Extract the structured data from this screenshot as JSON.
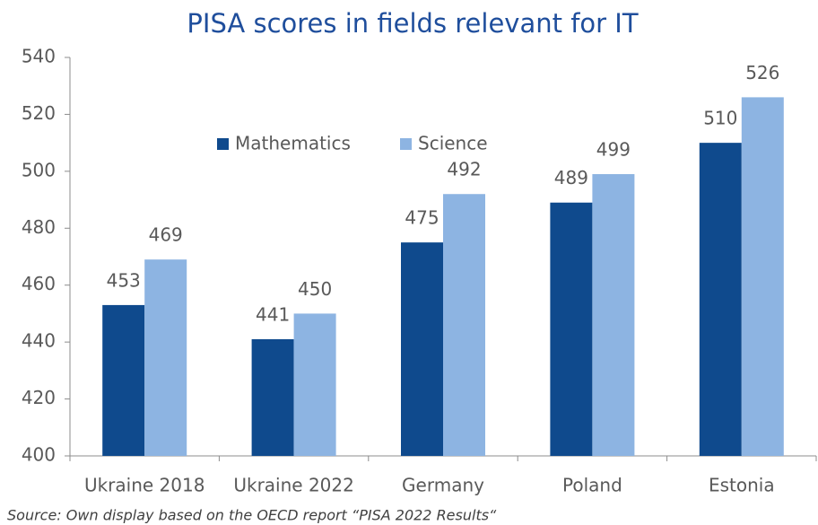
{
  "chart_data": {
    "type": "bar",
    "title": "PISA scores in fields relevant for IT",
    "categories": [
      "Ukraine 2018",
      "Ukraine 2022",
      "Germany",
      "Poland",
      "Estonia"
    ],
    "series": [
      {
        "name": "Mathematics",
        "color": "#0f4a8d",
        "values": [
          453,
          441,
          475,
          489,
          510
        ]
      },
      {
        "name": "Science",
        "color": "#8db4e2",
        "values": [
          469,
          450,
          492,
          499,
          526
        ]
      }
    ],
    "ylim": [
      400,
      540
    ],
    "yticks": [
      400,
      420,
      440,
      460,
      480,
      500,
      520,
      540
    ],
    "grid": false,
    "legend": "top",
    "source": "Source: Own display based on the OECD report “PISA 2022 Results“"
  }
}
